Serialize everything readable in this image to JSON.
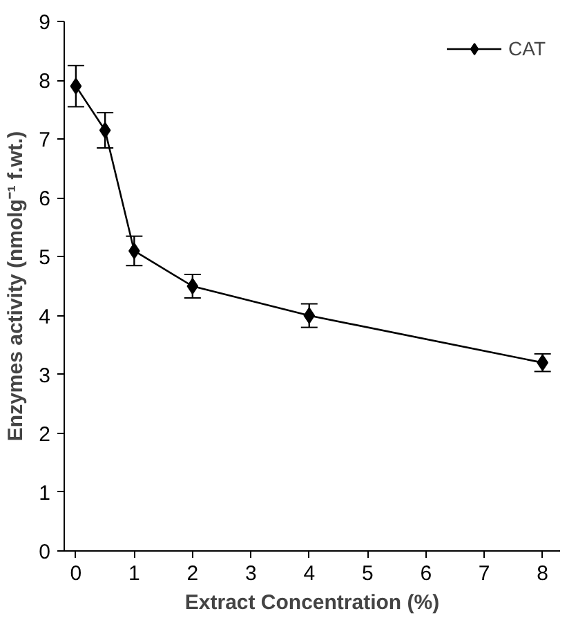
{
  "chart_data": {
    "type": "line",
    "xlabel": "Extract Concentration (%)",
    "ylabel": "Enzymes activity (nmolg⁻¹ f.wt.)",
    "x": [
      0,
      0.5,
      1,
      2,
      4,
      8
    ],
    "series": [
      {
        "name": "CAT",
        "color": "#000000",
        "values": [
          7.9,
          7.15,
          5.1,
          4.5,
          4.0,
          3.2
        ],
        "errors": [
          0.35,
          0.3,
          0.25,
          0.2,
          0.2,
          0.15
        ]
      }
    ],
    "xlim": [
      -0.2,
      8.3
    ],
    "xticks": [
      0,
      1,
      2,
      3,
      4,
      5,
      6,
      7,
      8
    ],
    "ylim": [
      0,
      9
    ],
    "yticks": [
      0,
      1,
      2,
      3,
      4,
      5,
      6,
      7,
      8,
      9
    ],
    "grid": false,
    "legend": "top right",
    "marker": "diamond",
    "line_style": "solid"
  }
}
